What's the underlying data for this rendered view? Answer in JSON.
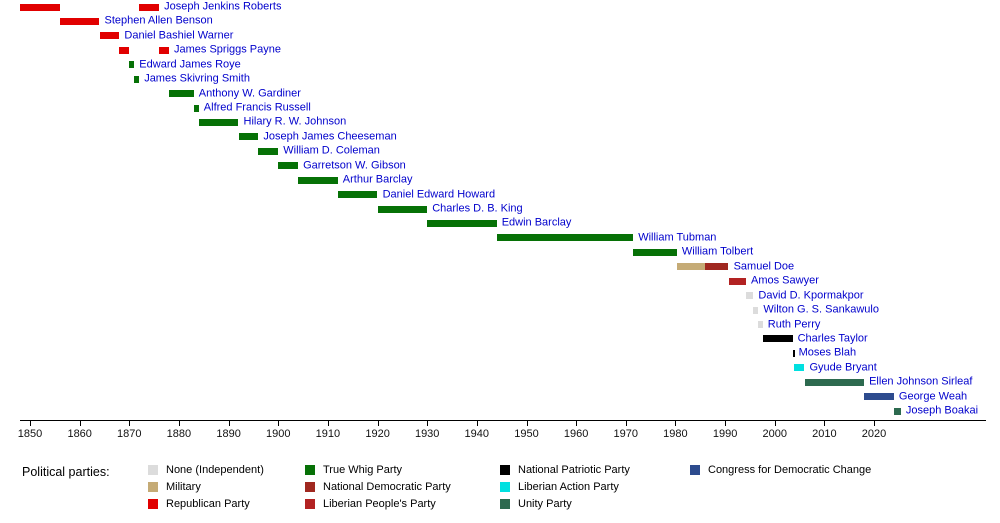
{
  "legend": {
    "title": "Political parties:",
    "columns": [
      [
        "none",
        "military",
        "republican"
      ],
      [
        "true_whig",
        "ndp",
        "lpp"
      ],
      [
        "npp",
        "lap",
        "unity"
      ],
      [
        "cdc"
      ]
    ]
  },
  "colors": {
    "name_link": "#0000cc",
    "axis": "#000000",
    "background": "#ffffff"
  },
  "chart_data": {
    "type": "bar",
    "subtype": "timeline-gantt",
    "title": "",
    "xlabel": "",
    "ylabel": "",
    "xlim": [
      1848,
      2026
    ],
    "grid": false,
    "legend_position": "bottom",
    "x_ticks": [
      1850,
      1860,
      1870,
      1880,
      1890,
      1900,
      1910,
      1920,
      1930,
      1940,
      1950,
      1960,
      1970,
      1980,
      1990,
      2000,
      2010,
      2020
    ],
    "parties": {
      "none": {
        "label": "None (Independent)",
        "color": "#dcdcdc"
      },
      "military": {
        "label": "Military",
        "color": "#c5ab76"
      },
      "republican": {
        "label": "Republican Party",
        "color": "#e10000"
      },
      "true_whig": {
        "label": "True Whig Party",
        "color": "#067106"
      },
      "ndp": {
        "label": "National Democratic Party",
        "color": "#a02820"
      },
      "lpp": {
        "label": "Liberian People's Party",
        "color": "#b22222"
      },
      "npp": {
        "label": "National Patriotic Party",
        "color": "#000000"
      },
      "lap": {
        "label": "Liberian Action Party",
        "color": "#00e0e0"
      },
      "unity": {
        "label": "Unity Party",
        "color": "#2d6a4f"
      },
      "cdc": {
        "label": "Congress for Democratic Change",
        "color": "#2d4b8e"
      }
    },
    "presidents": [
      {
        "name": "Joseph Jenkins Roberts",
        "terms": [
          {
            "start": 1848,
            "end": 1856,
            "party": "republican"
          },
          {
            "start": 1872,
            "end": 1876,
            "party": "republican"
          }
        ]
      },
      {
        "name": "Stephen Allen Benson",
        "terms": [
          {
            "start": 1856,
            "end": 1864,
            "party": "republican"
          }
        ]
      },
      {
        "name": "Daniel Bashiel Warner",
        "terms": [
          {
            "start": 1864,
            "end": 1868,
            "party": "republican"
          }
        ]
      },
      {
        "name": "James Spriggs Payne",
        "terms": [
          {
            "start": 1868,
            "end": 1870,
            "party": "republican"
          },
          {
            "start": 1876,
            "end": 1878,
            "party": "republican"
          }
        ]
      },
      {
        "name": "Edward James Roye",
        "terms": [
          {
            "start": 1870,
            "end": 1871,
            "party": "true_whig"
          }
        ]
      },
      {
        "name": "James Skivring Smith",
        "terms": [
          {
            "start": 1871,
            "end": 1872,
            "party": "true_whig"
          }
        ]
      },
      {
        "name": "Anthony W. Gardiner",
        "terms": [
          {
            "start": 1878,
            "end": 1883,
            "party": "true_whig"
          }
        ]
      },
      {
        "name": "Alfred Francis Russell",
        "terms": [
          {
            "start": 1883,
            "end": 1884,
            "party": "true_whig"
          }
        ]
      },
      {
        "name": "Hilary R. W. Johnson",
        "terms": [
          {
            "start": 1884,
            "end": 1892,
            "party": "true_whig"
          }
        ]
      },
      {
        "name": "Joseph James Cheeseman",
        "terms": [
          {
            "start": 1892,
            "end": 1896,
            "party": "true_whig"
          }
        ]
      },
      {
        "name": "William D. Coleman",
        "terms": [
          {
            "start": 1896,
            "end": 1900,
            "party": "true_whig"
          }
        ]
      },
      {
        "name": "Garretson W. Gibson",
        "terms": [
          {
            "start": 1900,
            "end": 1904,
            "party": "true_whig"
          }
        ]
      },
      {
        "name": "Arthur Barclay",
        "terms": [
          {
            "start": 1904,
            "end": 1912,
            "party": "true_whig"
          }
        ]
      },
      {
        "name": "Daniel Edward Howard",
        "terms": [
          {
            "start": 1912,
            "end": 1920,
            "party": "true_whig"
          }
        ]
      },
      {
        "name": "Charles D. B. King",
        "terms": [
          {
            "start": 1920,
            "end": 1930,
            "party": "true_whig"
          }
        ]
      },
      {
        "name": "Edwin Barclay",
        "terms": [
          {
            "start": 1930,
            "end": 1944,
            "party": "true_whig"
          }
        ]
      },
      {
        "name": "William Tubman",
        "terms": [
          {
            "start": 1944,
            "end": 1971.5,
            "party": "true_whig"
          }
        ]
      },
      {
        "name": "William Tolbert",
        "terms": [
          {
            "start": 1971.5,
            "end": 1980.3,
            "party": "true_whig"
          }
        ]
      },
      {
        "name": "Samuel Doe",
        "terms": [
          {
            "start": 1980.3,
            "end": 1986,
            "party": "military"
          },
          {
            "start": 1986,
            "end": 1990.7,
            "party": "ndp"
          }
        ]
      },
      {
        "name": "Amos Sawyer",
        "terms": [
          {
            "start": 1990.7,
            "end": 1994.2,
            "party": "lpp"
          }
        ]
      },
      {
        "name": "David D. Kpormakpor",
        "terms": [
          {
            "start": 1994.2,
            "end": 1995.7,
            "party": "none"
          }
        ]
      },
      {
        "name": "Wilton G. S. Sankawulo",
        "terms": [
          {
            "start": 1995.7,
            "end": 1996.7,
            "party": "none"
          }
        ]
      },
      {
        "name": "Ruth Perry",
        "terms": [
          {
            "start": 1996.7,
            "end": 1997.6,
            "party": "none"
          }
        ]
      },
      {
        "name": "Charles Taylor",
        "terms": [
          {
            "start": 1997.6,
            "end": 2003.6,
            "party": "npp"
          }
        ]
      },
      {
        "name": "Moses Blah",
        "terms": [
          {
            "start": 2003.6,
            "end": 2003.8,
            "party": "npp"
          }
        ]
      },
      {
        "name": "Gyude Bryant",
        "terms": [
          {
            "start": 2003.8,
            "end": 2006,
            "party": "lap"
          }
        ]
      },
      {
        "name": "Ellen Johnson Sirleaf",
        "terms": [
          {
            "start": 2006,
            "end": 2018,
            "party": "unity"
          }
        ]
      },
      {
        "name": "George Weah",
        "terms": [
          {
            "start": 2018,
            "end": 2024,
            "party": "cdc"
          }
        ]
      },
      {
        "name": "Joseph Boakai",
        "terms": [
          {
            "start": 2024,
            "end": 2025.4,
            "party": "unity"
          }
        ]
      }
    ]
  }
}
